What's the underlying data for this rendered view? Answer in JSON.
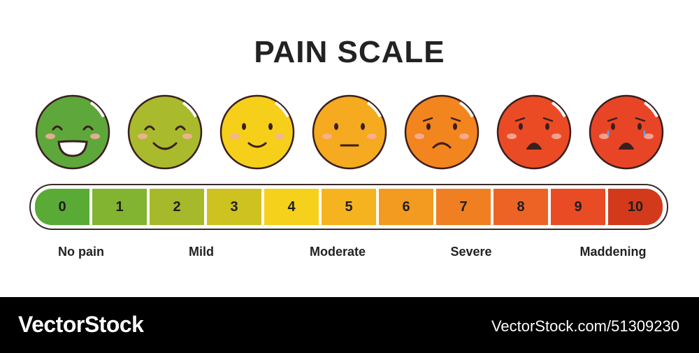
{
  "title": "PAIN SCALE",
  "faces": [
    {
      "name": "face-0-laughing",
      "color": "#5ea73b",
      "mood": "laughing"
    },
    {
      "name": "face-2-happy",
      "color": "#a9ba2d",
      "mood": "happy"
    },
    {
      "name": "face-4-smile",
      "color": "#f6cf1b",
      "mood": "smile"
    },
    {
      "name": "face-5-neutral",
      "color": "#f5aa1f",
      "mood": "neutral"
    },
    {
      "name": "face-6-sad",
      "color": "#f2851e",
      "mood": "sad"
    },
    {
      "name": "face-8-distressed",
      "color": "#ea4b25",
      "mood": "distressed"
    },
    {
      "name": "face-10-crying",
      "color": "#e84526",
      "mood": "crying"
    }
  ],
  "scale": [
    {
      "value": "0",
      "color": "#5aaa36"
    },
    {
      "value": "1",
      "color": "#82b431"
    },
    {
      "value": "2",
      "color": "#a6b92a"
    },
    {
      "value": "3",
      "color": "#cec220"
    },
    {
      "value": "4",
      "color": "#f6d11b"
    },
    {
      "value": "5",
      "color": "#f5b41f"
    },
    {
      "value": "6",
      "color": "#f29b20"
    },
    {
      "value": "7",
      "color": "#f07f22"
    },
    {
      "value": "8",
      "color": "#ec6325"
    },
    {
      "value": "9",
      "color": "#e94c25"
    },
    {
      "value": "10",
      "color": "#d33a1c"
    }
  ],
  "labels": [
    "No pain",
    "Mild",
    "Moderate",
    "Severe",
    "Maddening"
  ],
  "footer": {
    "brand": "VectorStock",
    "url": "VectorStock.com/51309230"
  }
}
